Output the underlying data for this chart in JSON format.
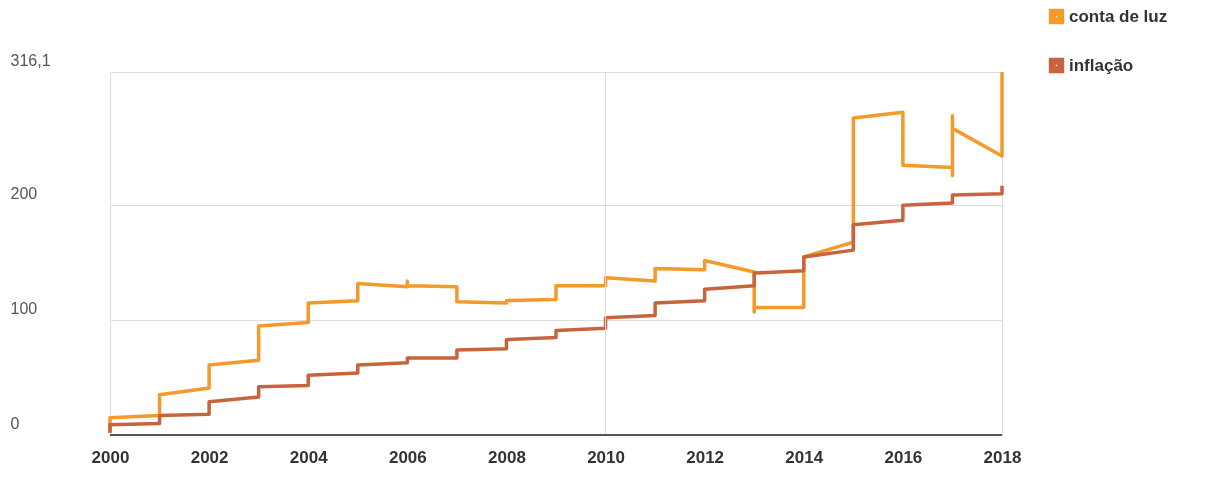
{
  "chart_data": {
    "type": "line",
    "xlim": [
      2000,
      2018
    ],
    "xticks": [
      2000,
      2002,
      2004,
      2006,
      2008,
      2010,
      2012,
      2014,
      2016,
      2018
    ],
    "ylim": [
      0,
      316.1
    ],
    "yticks": [
      0,
      100,
      200,
      {
        "value": 316.1,
        "label": "316,1"
      }
    ],
    "grid": "y",
    "legend": "top right",
    "marker": "none",
    "line_style": "solid",
    "ref_lines": [
      {
        "axis": "x",
        "value": 2010,
        "label": null,
        "color": "#dddddd"
      }
    ],
    "series": [
      {
        "name": "conta de luz",
        "color": "#f39a2b",
        "x": [
          2000,
          2000,
          2001,
          2001,
          2002,
          2002,
          2003,
          2003,
          2004,
          2004,
          2005,
          2005,
          2006,
          2006,
          2006,
          2007,
          2007,
          2008,
          2008,
          2009,
          2009,
          2010,
          2010,
          2011,
          2011,
          2012,
          2012,
          2013,
          2013,
          2013,
          2014,
          2014,
          2015,
          2015,
          2016,
          2016,
          2017,
          2017,
          2017,
          2017,
          2018,
          2018
        ],
        "values": [
          2,
          15,
          17,
          35,
          41,
          61,
          65,
          95,
          98,
          115,
          117,
          132,
          129,
          134,
          130,
          129,
          116,
          115,
          117,
          118,
          130,
          130,
          137,
          134,
          145,
          144,
          152,
          142,
          107,
          111,
          111,
          155,
          168,
          276,
          281,
          235,
          233,
          226,
          278,
          267,
          243,
          316
        ]
      },
      {
        "name": "inflação",
        "color": "#c8643c",
        "x": [
          2000,
          2000,
          2001,
          2001,
          2002,
          2002,
          2003,
          2003,
          2004,
          2004,
          2005,
          2005,
          2006,
          2006,
          2007,
          2007,
          2008,
          2008,
          2009,
          2009,
          2010,
          2010,
          2011,
          2011,
          2012,
          2012,
          2013,
          2013,
          2014,
          2014,
          2015,
          2015,
          2016,
          2016,
          2017,
          2017,
          2018,
          2018
        ],
        "values": [
          2,
          9,
          10,
          17,
          18,
          29,
          33,
          42,
          43,
          52,
          54,
          61,
          63,
          67,
          67,
          74,
          75,
          83,
          85,
          91,
          93,
          102,
          104,
          115,
          117,
          127,
          130,
          141,
          143,
          155,
          161,
          183,
          187,
          200,
          202,
          209,
          210,
          217
        ]
      }
    ]
  }
}
